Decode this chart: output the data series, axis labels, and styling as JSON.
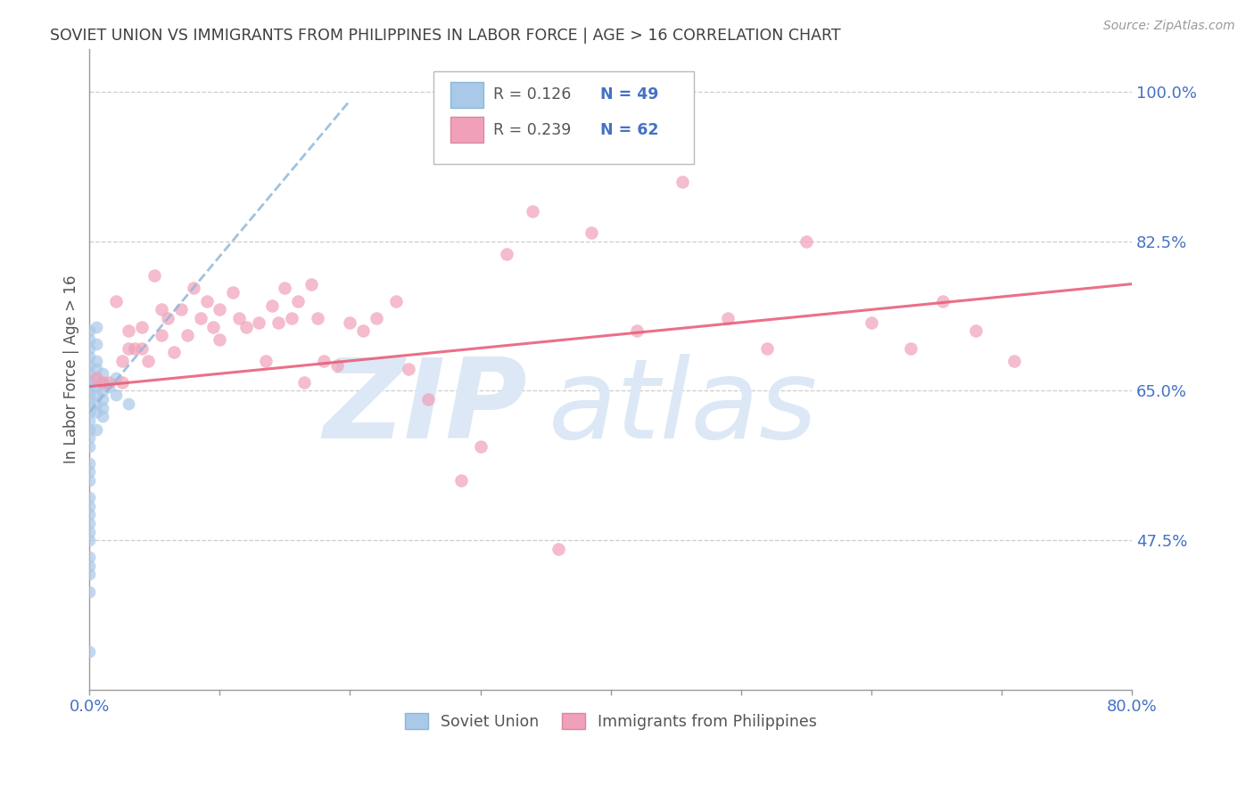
{
  "title": "SOVIET UNION VS IMMIGRANTS FROM PHILIPPINES IN LABOR FORCE | AGE > 16 CORRELATION CHART",
  "source": "Source: ZipAtlas.com",
  "ylabel": "In Labor Force | Age > 16",
  "xmin": 0.0,
  "xmax": 0.8,
  "ymin": 0.3,
  "ymax": 1.05,
  "xticks": [
    0.0,
    0.1,
    0.2,
    0.3,
    0.4,
    0.5,
    0.6,
    0.7,
    0.8
  ],
  "xticklabels": [
    "0.0%",
    "",
    "",
    "",
    "",
    "",
    "",
    "",
    "80.0%"
  ],
  "ytick_values": [
    0.475,
    0.65,
    0.825,
    1.0
  ],
  "ytick_labels": [
    "47.5%",
    "65.0%",
    "82.5%",
    "100.0%"
  ],
  "legend_r1": "R = 0.126",
  "legend_n1": "N = 49",
  "legend_r2": "R = 0.239",
  "legend_n2": "N = 62",
  "legend_label1": "Soviet Union",
  "legend_label2": "Immigrants from Philippines",
  "color_soviet": "#aac8e8",
  "color_phil": "#f0a0b8",
  "color_soviet_line": "#90b8d8",
  "color_phil_line": "#e8607a",
  "color_r_value": "#555555",
  "color_n_value": "#4472c4",
  "color_axis_labels": "#4472c4",
  "color_title": "#404040",
  "watermark_zip": "ZIP",
  "watermark_atlas": "atlas",
  "watermark_color": "#dce8f5",
  "soviet_x": [
    0.0,
    0.0,
    0.0,
    0.0,
    0.0,
    0.0,
    0.0,
    0.0,
    0.0,
    0.0,
    0.0,
    0.0,
    0.0,
    0.0,
    0.0,
    0.0,
    0.0,
    0.0,
    0.0,
    0.0,
    0.0,
    0.0,
    0.0,
    0.0,
    0.0,
    0.0,
    0.0,
    0.0,
    0.0,
    0.005,
    0.005,
    0.005,
    0.005,
    0.005,
    0.005,
    0.005,
    0.005,
    0.005,
    0.005,
    0.01,
    0.01,
    0.01,
    0.01,
    0.01,
    0.01,
    0.015,
    0.02,
    0.02,
    0.03
  ],
  "soviet_y": [
    0.72,
    0.71,
    0.7,
    0.69,
    0.68,
    0.67,
    0.66,
    0.655,
    0.645,
    0.635,
    0.625,
    0.615,
    0.605,
    0.595,
    0.585,
    0.565,
    0.555,
    0.545,
    0.525,
    0.515,
    0.505,
    0.495,
    0.485,
    0.475,
    0.455,
    0.445,
    0.435,
    0.415,
    0.345,
    0.725,
    0.705,
    0.685,
    0.675,
    0.665,
    0.655,
    0.645,
    0.635,
    0.625,
    0.605,
    0.67,
    0.65,
    0.63,
    0.66,
    0.64,
    0.62,
    0.655,
    0.665,
    0.645,
    0.635
  ],
  "phil_x": [
    0.005,
    0.01,
    0.015,
    0.02,
    0.025,
    0.025,
    0.03,
    0.03,
    0.035,
    0.04,
    0.04,
    0.045,
    0.05,
    0.055,
    0.055,
    0.06,
    0.065,
    0.07,
    0.075,
    0.08,
    0.085,
    0.09,
    0.095,
    0.1,
    0.1,
    0.11,
    0.115,
    0.12,
    0.13,
    0.135,
    0.14,
    0.145,
    0.15,
    0.155,
    0.16,
    0.165,
    0.17,
    0.175,
    0.18,
    0.19,
    0.2,
    0.21,
    0.22,
    0.235,
    0.245,
    0.26,
    0.285,
    0.3,
    0.32,
    0.34,
    0.36,
    0.385,
    0.42,
    0.455,
    0.49,
    0.52,
    0.55,
    0.6,
    0.63,
    0.655,
    0.68,
    0.71
  ],
  "phil_y": [
    0.665,
    0.66,
    0.66,
    0.755,
    0.685,
    0.66,
    0.72,
    0.7,
    0.7,
    0.725,
    0.7,
    0.685,
    0.785,
    0.745,
    0.715,
    0.735,
    0.695,
    0.745,
    0.715,
    0.77,
    0.735,
    0.755,
    0.725,
    0.745,
    0.71,
    0.765,
    0.735,
    0.725,
    0.73,
    0.685,
    0.75,
    0.73,
    0.77,
    0.735,
    0.755,
    0.66,
    0.775,
    0.735,
    0.685,
    0.68,
    0.73,
    0.72,
    0.735,
    0.755,
    0.675,
    0.64,
    0.545,
    0.585,
    0.81,
    0.86,
    0.465,
    0.835,
    0.72,
    0.895,
    0.735,
    0.7,
    0.825,
    0.73,
    0.7,
    0.755,
    0.72,
    0.685
  ],
  "soviet_trend_x": [
    0.0,
    0.2
  ],
  "soviet_trend_y": [
    0.625,
    0.99
  ],
  "phil_trend_x": [
    0.0,
    0.8
  ],
  "phil_trend_y": [
    0.655,
    0.775
  ],
  "background_color": "#ffffff",
  "grid_color": "#c8c8c8"
}
